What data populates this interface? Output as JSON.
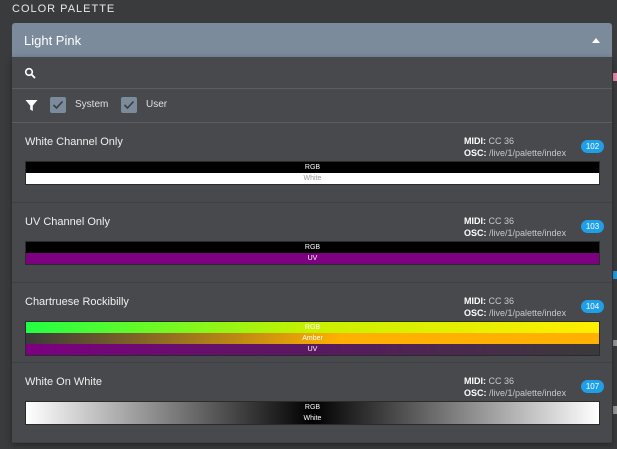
{
  "section_title": "COLOR PALETTE",
  "dropdown": {
    "selected": "Light Pink"
  },
  "search": {
    "value": "",
    "placeholder": ""
  },
  "filters": [
    {
      "label": "System",
      "checked": true
    },
    {
      "label": "User",
      "checked": true
    }
  ],
  "labels": {
    "midi": "MIDI:",
    "osc": "OSC:"
  },
  "palettes": [
    {
      "name": "White Channel Only",
      "midi": "CC 36",
      "osc": "/live/1/palette/index",
      "index": "102",
      "bars": [
        {
          "label": "RGB",
          "background": "#000000"
        },
        {
          "label": "White",
          "background": "#ffffff",
          "dark": true
        }
      ]
    },
    {
      "name": "UV Channel Only",
      "midi": "CC 36",
      "osc": "/live/1/palette/index",
      "index": "103",
      "bars": [
        {
          "label": "RGB",
          "background": "#000000"
        },
        {
          "label": "UV",
          "background": "#7c0080"
        }
      ]
    },
    {
      "name": "Chartruese Rockibilly",
      "midi": "CC 36",
      "osc": "/live/1/palette/index",
      "index": "104",
      "bars": [
        {
          "label": "RGB",
          "background": "linear-gradient(90deg,#22ff44,#c8f000 50%,#ffee00)"
        },
        {
          "label": "Amber",
          "background": "linear-gradient(90deg,#3a3a3a,#ffb000 55%,#ffb000)"
        },
        {
          "label": "UV",
          "background": "linear-gradient(90deg,#7c0080,#5a1860 50%,#3a3a3a)"
        }
      ]
    },
    {
      "name": "White On White",
      "midi": "CC 36",
      "osc": "/live/1/palette/index",
      "index": "107",
      "bars": [
        {
          "label": "RGB",
          "background": "linear-gradient(90deg,#ffffff,#000000 50%,#ffffff)"
        },
        {
          "label": "White",
          "background": "linear-gradient(90deg,#ffffff,#000000 50%,#ffffff)"
        }
      ]
    }
  ],
  "colors": {
    "accent": "#7b8b9b",
    "badge": "#1e9fe8",
    "panel": "#47494c"
  }
}
